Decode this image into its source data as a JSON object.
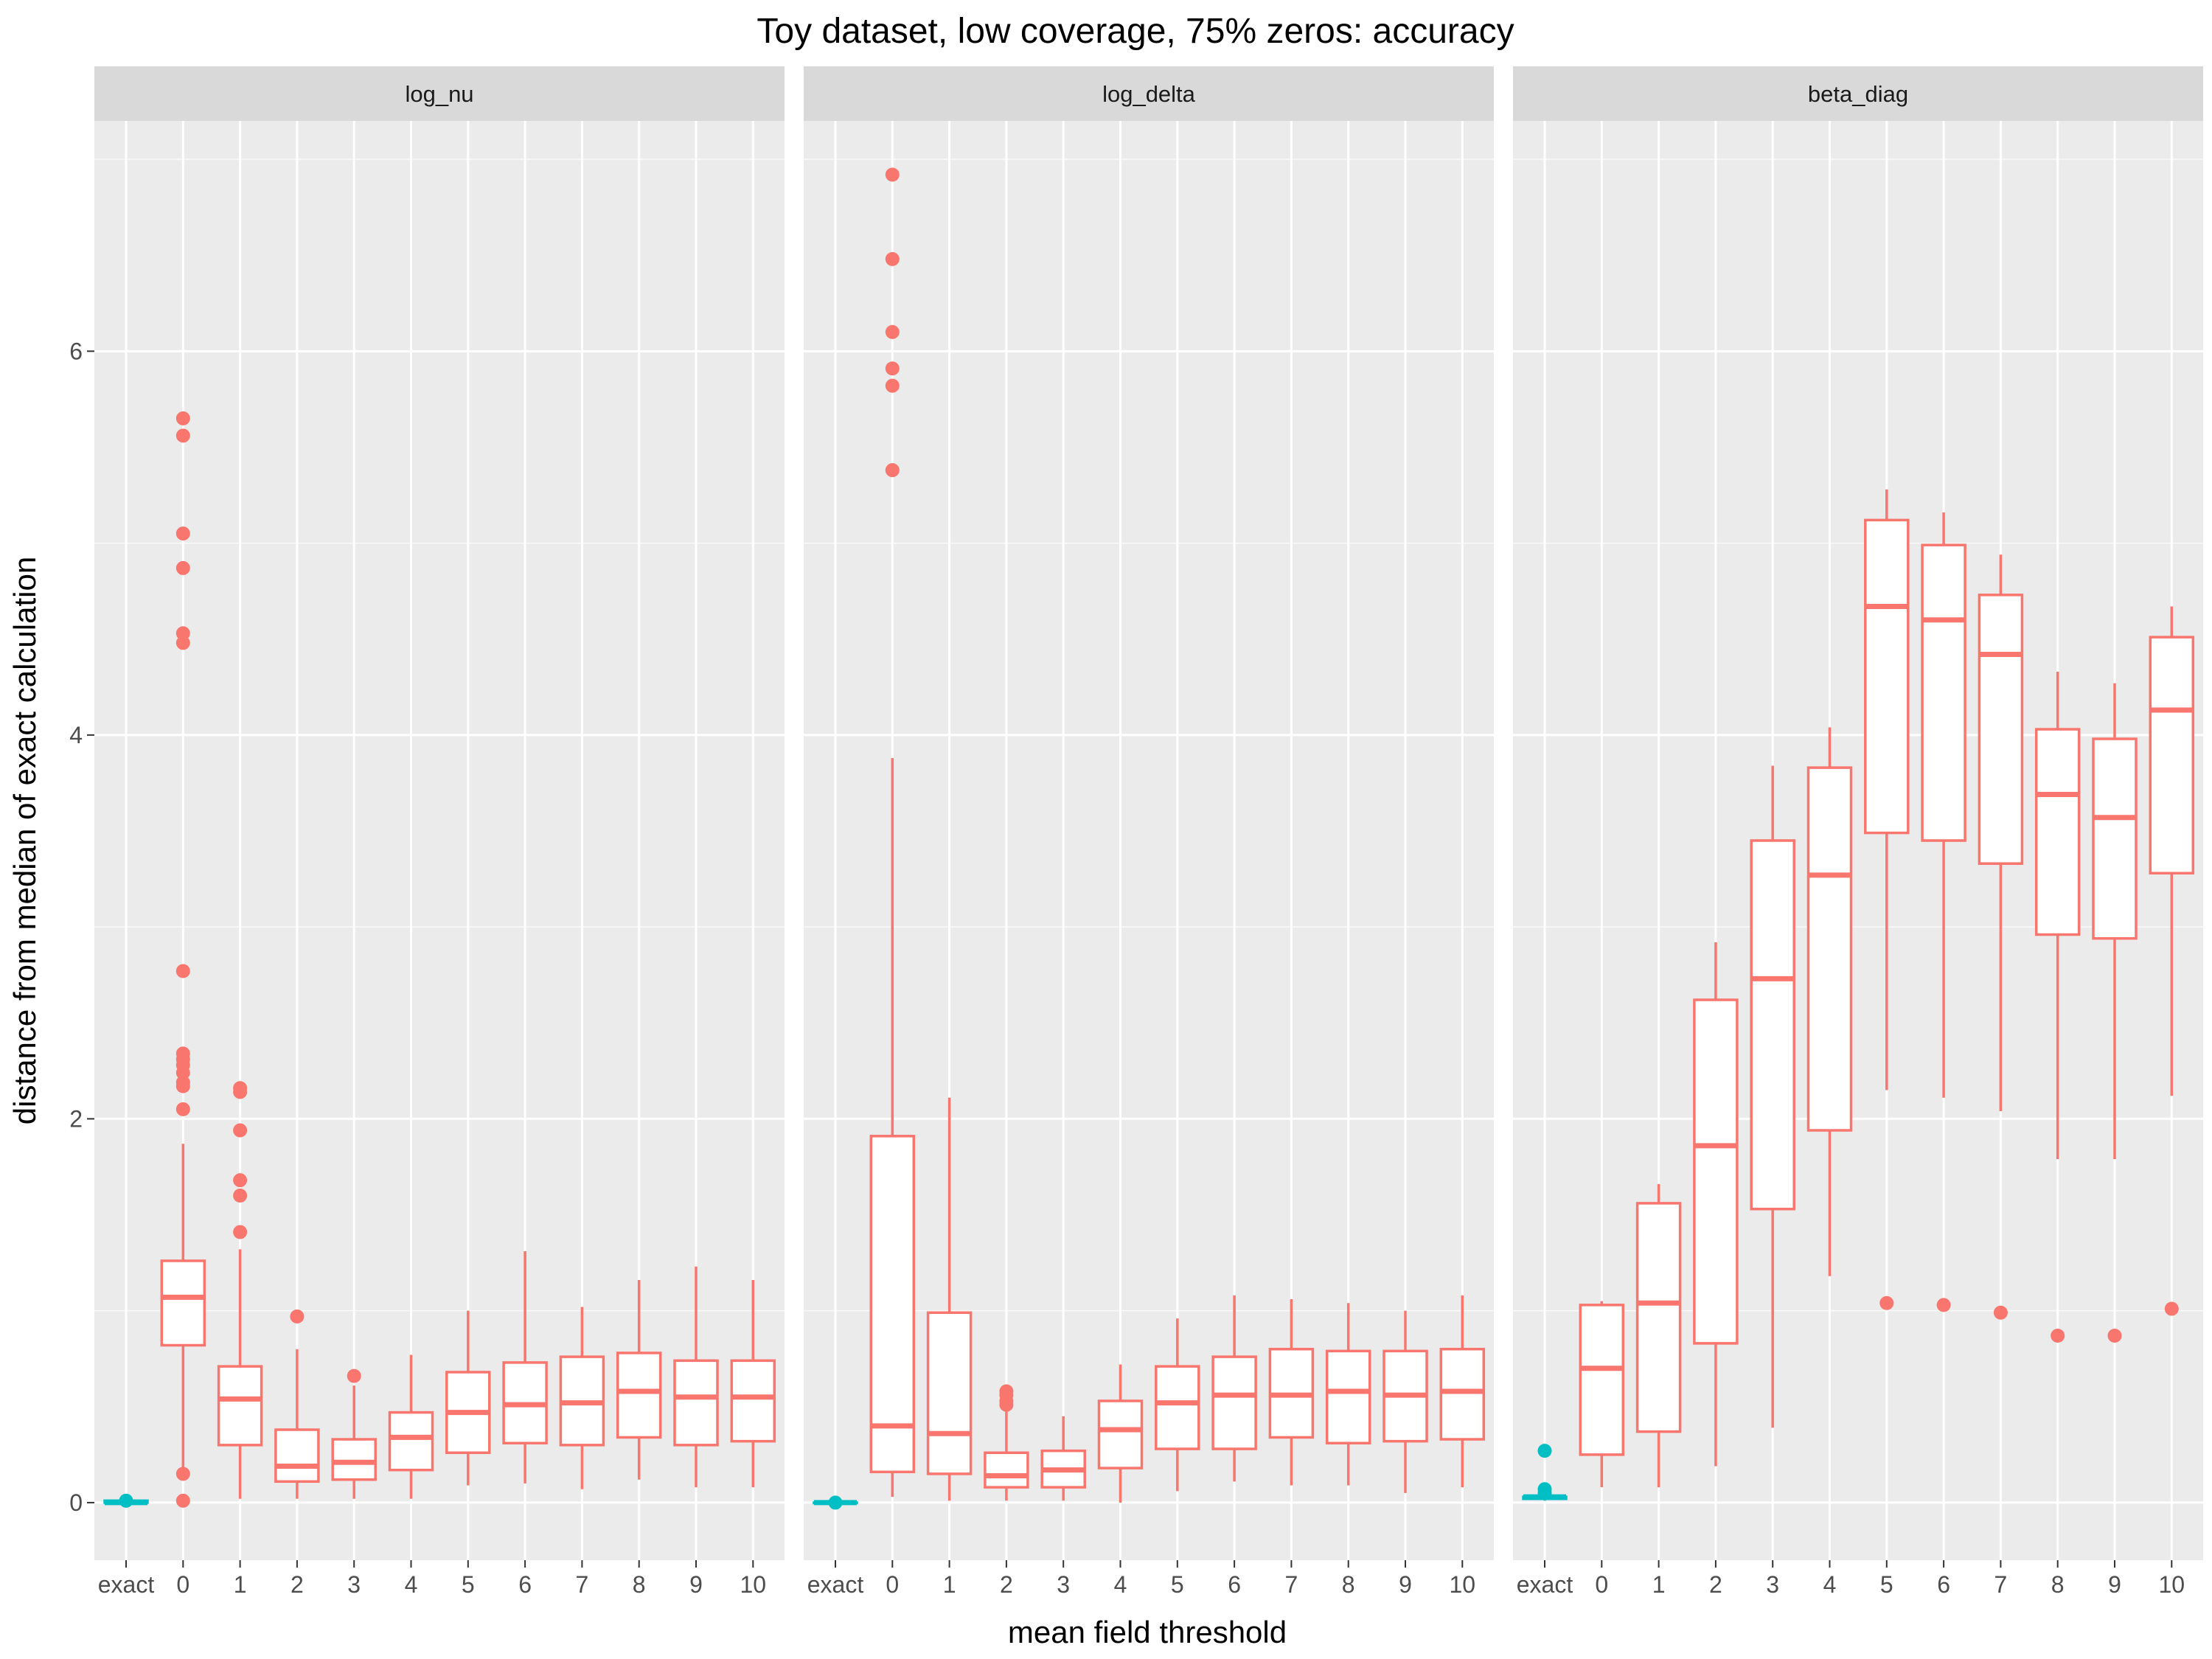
{
  "chart_data": {
    "type": "boxplot",
    "title": "Toy dataset, low coverage, 75% zeros: accuracy",
    "xlabel": "mean field threshold",
    "ylabel": "distance from median of exact calculation",
    "categories": [
      "exact",
      "0",
      "1",
      "2",
      "3",
      "4",
      "5",
      "6",
      "7",
      "8",
      "9",
      "10"
    ],
    "ylim": [
      -0.3,
      7.2
    ],
    "yticks": [
      0,
      2,
      4,
      6
    ],
    "ytick_labels": [
      "0",
      "2",
      "4",
      "6"
    ],
    "grid": true,
    "legend": "none",
    "colors": {
      "exact": "#00BFC4",
      "threshold": "#F8766D",
      "panel_bg": "#EBEBEB",
      "strip_bg": "#D9D9D9",
      "grid": "#FFFFFF"
    },
    "panels": [
      {
        "strip_label": "log_nu",
        "boxes": [
          {
            "category": "exact",
            "lower_whisker": 0.0,
            "q1": 0.0,
            "median": 0.0,
            "q3": 0.01,
            "upper_whisker": 0.02,
            "outliers": [
              0.01
            ]
          },
          {
            "category": "0",
            "lower_whisker": 0.18,
            "q1": 0.82,
            "median": 1.07,
            "q3": 1.26,
            "upper_whisker": 1.87,
            "outliers": [
              5.65,
              5.56,
              5.05,
              4.87,
              4.53,
              4.48,
              2.77,
              2.34,
              2.31,
              2.28,
              2.24,
              2.19,
              2.17,
              2.05,
              0.15,
              0.01
            ]
          },
          {
            "category": "1",
            "lower_whisker": 0.02,
            "q1": 0.3,
            "median": 0.54,
            "q3": 0.71,
            "upper_whisker": 1.32,
            "outliers": [
              2.16,
              2.14,
              1.94,
              1.68,
              1.6,
              1.41
            ]
          },
          {
            "category": "2",
            "lower_whisker": 0.02,
            "q1": 0.11,
            "median": 0.19,
            "q3": 0.38,
            "upper_whisker": 0.8,
            "outliers": [
              0.97
            ]
          },
          {
            "category": "3",
            "lower_whisker": 0.02,
            "q1": 0.12,
            "median": 0.21,
            "q3": 0.33,
            "upper_whisker": 0.61,
            "outliers": [
              0.66
            ]
          },
          {
            "category": "4",
            "lower_whisker": 0.02,
            "q1": 0.17,
            "median": 0.34,
            "q3": 0.47,
            "upper_whisker": 0.77,
            "outliers": []
          },
          {
            "category": "5",
            "lower_whisker": 0.09,
            "q1": 0.26,
            "median": 0.47,
            "q3": 0.68,
            "upper_whisker": 1.0,
            "outliers": []
          },
          {
            "category": "6",
            "lower_whisker": 0.1,
            "q1": 0.31,
            "median": 0.51,
            "q3": 0.73,
            "upper_whisker": 1.31,
            "outliers": []
          },
          {
            "category": "7",
            "lower_whisker": 0.07,
            "q1": 0.3,
            "median": 0.52,
            "q3": 0.76,
            "upper_whisker": 1.02,
            "outliers": []
          },
          {
            "category": "8",
            "lower_whisker": 0.12,
            "q1": 0.34,
            "median": 0.58,
            "q3": 0.78,
            "upper_whisker": 1.16,
            "outliers": []
          },
          {
            "category": "9",
            "lower_whisker": 0.08,
            "q1": 0.3,
            "median": 0.55,
            "q3": 0.74,
            "upper_whisker": 1.23,
            "outliers": []
          },
          {
            "category": "10",
            "lower_whisker": 0.08,
            "q1": 0.32,
            "median": 0.55,
            "q3": 0.74,
            "upper_whisker": 1.16,
            "outliers": []
          }
        ]
      },
      {
        "strip_label": "log_delta",
        "boxes": [
          {
            "category": "exact",
            "lower_whisker": 0.0,
            "q1": 0.0,
            "median": 0.0,
            "q3": 0.0,
            "upper_whisker": 0.01,
            "outliers": [
              0.0
            ]
          },
          {
            "category": "0",
            "lower_whisker": 0.03,
            "q1": 0.16,
            "median": 0.4,
            "q3": 1.91,
            "upper_whisker": 3.88,
            "outliers": [
              6.92,
              6.48,
              6.1,
              5.91,
              5.82,
              5.38
            ]
          },
          {
            "category": "1",
            "lower_whisker": 0.01,
            "q1": 0.15,
            "median": 0.36,
            "q3": 0.99,
            "upper_whisker": 2.11,
            "outliers": []
          },
          {
            "category": "2",
            "lower_whisker": 0.01,
            "q1": 0.08,
            "median": 0.14,
            "q3": 0.26,
            "upper_whisker": 0.5,
            "outliers": [
              0.58,
              0.56,
              0.53,
              0.51
            ]
          },
          {
            "category": "3",
            "lower_whisker": 0.01,
            "q1": 0.08,
            "median": 0.17,
            "q3": 0.27,
            "upper_whisker": 0.45,
            "outliers": []
          },
          {
            "category": "4",
            "lower_whisker": 0.0,
            "q1": 0.18,
            "median": 0.38,
            "q3": 0.53,
            "upper_whisker": 0.72,
            "outliers": []
          },
          {
            "category": "5",
            "lower_whisker": 0.06,
            "q1": 0.28,
            "median": 0.52,
            "q3": 0.71,
            "upper_whisker": 0.96,
            "outliers": []
          },
          {
            "category": "6",
            "lower_whisker": 0.11,
            "q1": 0.28,
            "median": 0.56,
            "q3": 0.76,
            "upper_whisker": 1.08,
            "outliers": []
          },
          {
            "category": "7",
            "lower_whisker": 0.09,
            "q1": 0.34,
            "median": 0.56,
            "q3": 0.8,
            "upper_whisker": 1.06,
            "outliers": []
          },
          {
            "category": "8",
            "lower_whisker": 0.09,
            "q1": 0.31,
            "median": 0.58,
            "q3": 0.79,
            "upper_whisker": 1.04,
            "outliers": []
          },
          {
            "category": "9",
            "lower_whisker": 0.05,
            "q1": 0.32,
            "median": 0.56,
            "q3": 0.79,
            "upper_whisker": 1.0,
            "outliers": []
          },
          {
            "category": "10",
            "lower_whisker": 0.08,
            "q1": 0.33,
            "median": 0.58,
            "q3": 0.8,
            "upper_whisker": 1.08,
            "outliers": []
          }
        ]
      },
      {
        "strip_label": "beta_diag",
        "boxes": [
          {
            "category": "exact",
            "lower_whisker": 0.01,
            "q1": 0.02,
            "median": 0.03,
            "q3": 0.03,
            "upper_whisker": 0.04,
            "outliers": [
              0.27,
              0.07,
              0.05
            ]
          },
          {
            "category": "0",
            "lower_whisker": 0.08,
            "q1": 0.25,
            "median": 0.7,
            "q3": 1.03,
            "upper_whisker": 1.05,
            "outliers": []
          },
          {
            "category": "1",
            "lower_whisker": 0.08,
            "q1": 0.37,
            "median": 1.04,
            "q3": 1.56,
            "upper_whisker": 1.66,
            "outliers": []
          },
          {
            "category": "2",
            "lower_whisker": 0.19,
            "q1": 0.83,
            "median": 1.86,
            "q3": 2.62,
            "upper_whisker": 2.92,
            "outliers": []
          },
          {
            "category": "3",
            "lower_whisker": 0.39,
            "q1": 1.53,
            "median": 2.73,
            "q3": 3.45,
            "upper_whisker": 3.84,
            "outliers": []
          },
          {
            "category": "4",
            "lower_whisker": 1.18,
            "q1": 1.94,
            "median": 3.27,
            "q3": 3.83,
            "upper_whisker": 4.04,
            "outliers": []
          },
          {
            "category": "5",
            "lower_whisker": 2.15,
            "q1": 3.49,
            "median": 4.67,
            "q3": 5.12,
            "upper_whisker": 5.28,
            "outliers": [
              1.04
            ]
          },
          {
            "category": "6",
            "lower_whisker": 2.11,
            "q1": 3.45,
            "median": 4.6,
            "q3": 4.99,
            "upper_whisker": 5.16,
            "outliers": [
              1.03
            ]
          },
          {
            "category": "7",
            "lower_whisker": 2.04,
            "q1": 3.33,
            "median": 4.42,
            "q3": 4.73,
            "upper_whisker": 4.94,
            "outliers": [
              0.99
            ]
          },
          {
            "category": "8",
            "lower_whisker": 1.79,
            "q1": 2.96,
            "median": 3.69,
            "q3": 4.03,
            "upper_whisker": 4.33,
            "outliers": [
              0.87
            ]
          },
          {
            "category": "9",
            "lower_whisker": 1.79,
            "q1": 2.94,
            "median": 3.57,
            "q3": 3.98,
            "upper_whisker": 4.27,
            "outliers": [
              0.87
            ]
          },
          {
            "category": "10",
            "lower_whisker": 2.12,
            "q1": 3.28,
            "median": 4.13,
            "q3": 4.51,
            "upper_whisker": 4.67,
            "outliers": [
              1.01
            ]
          }
        ]
      }
    ]
  }
}
